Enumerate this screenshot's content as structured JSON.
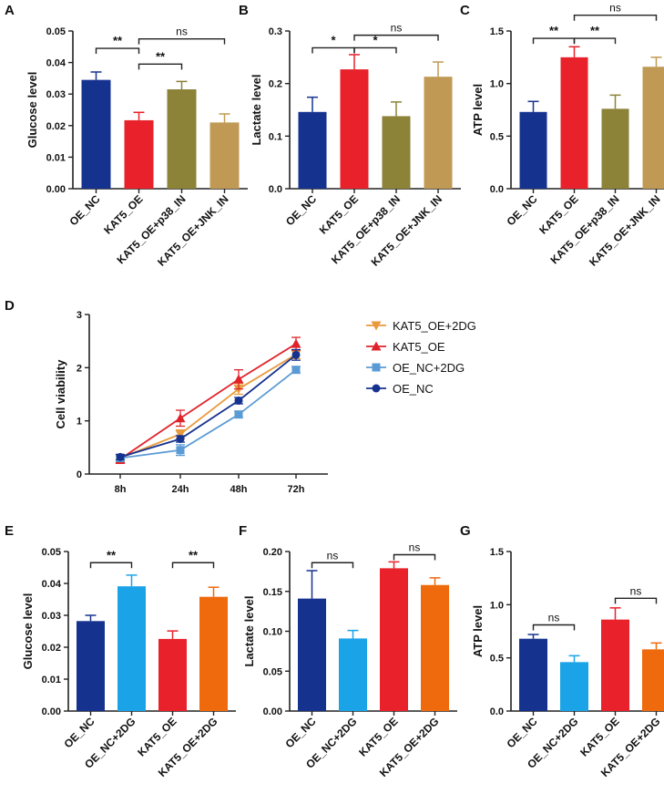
{
  "chart_data": [
    {
      "panel": "A",
      "type": "bar",
      "ylabel": "Glucose level",
      "ylim": [
        0,
        0.05
      ],
      "yticks": [
        "0.00",
        "0.01",
        "0.02",
        "0.03",
        "0.04",
        "0.05"
      ],
      "categories": [
        "OE_NC",
        "KAT5_OE",
        "KAT5_OE+p38_IN",
        "KAT5_OE+JNK_IN"
      ],
      "values": [
        0.0345,
        0.0217,
        0.0315,
        0.021
      ],
      "errors": [
        0.0025,
        0.0025,
        0.0025,
        0.0027
      ],
      "colors": [
        "#16328f",
        "#e8212a",
        "#8c8238",
        "#c09a55"
      ],
      "significance": [
        {
          "from": 0,
          "to": 1,
          "label": "**",
          "level": 0.0445
        },
        {
          "from": 1,
          "to": 2,
          "label": "**",
          "level": 0.0395
        },
        {
          "from": 1,
          "to": 3,
          "label": "ns",
          "level": 0.0475
        }
      ]
    },
    {
      "panel": "B",
      "type": "bar",
      "ylabel": "Lactate level",
      "ylim": [
        0,
        0.3
      ],
      "yticks": [
        "0.0",
        "0.1",
        "0.2",
        "0.3"
      ],
      "categories": [
        "OE_NC",
        "KAT5_OE",
        "KAT5_OE+p38_IN",
        "KAT5_OE+JNK_IN"
      ],
      "values": [
        0.146,
        0.227,
        0.138,
        0.213
      ],
      "errors": [
        0.028,
        0.028,
        0.027,
        0.028
      ],
      "colors": [
        "#16328f",
        "#e8212a",
        "#8c8238",
        "#c09a55"
      ],
      "significance": [
        {
          "from": 0,
          "to": 1,
          "label": "*",
          "level": 0.268
        },
        {
          "from": 1,
          "to": 2,
          "label": "*",
          "level": 0.268
        },
        {
          "from": 1,
          "to": 3,
          "label": "ns",
          "level": 0.292
        }
      ]
    },
    {
      "panel": "C",
      "type": "bar",
      "ylabel": "ATP level",
      "ylim": [
        0,
        1.5
      ],
      "yticks": [
        "0.0",
        "0.5",
        "1.0",
        "1.5"
      ],
      "categories": [
        "OE_NC",
        "KAT5_OE",
        "KAT5_OE+p38_IN",
        "KAT5_OE+JNK_IN"
      ],
      "values": [
        0.73,
        1.25,
        0.76,
        1.16
      ],
      "errors": [
        0.1,
        0.1,
        0.13,
        0.09
      ],
      "colors": [
        "#16328f",
        "#e8212a",
        "#8c8238",
        "#c09a55"
      ],
      "significance": [
        {
          "from": 0,
          "to": 1,
          "label": "**",
          "level": 1.43
        },
        {
          "from": 1,
          "to": 2,
          "label": "**",
          "level": 1.43
        },
        {
          "from": 1,
          "to": 3,
          "label": "ns",
          "level": 1.65
        }
      ]
    },
    {
      "panel": "D",
      "type": "line",
      "ylabel": "Cell viability",
      "ylim": [
        0,
        3
      ],
      "yticks": [
        "0",
        "1",
        "2",
        "3"
      ],
      "x": [
        "8h",
        "24h",
        "48h",
        "72h"
      ],
      "series": [
        {
          "name": "KAT5_OE+2DG",
          "color": "#e89a3c",
          "marker": "triangle-down",
          "values": [
            0.3,
            0.75,
            1.6,
            2.25
          ],
          "errors": [
            0.06,
            0.08,
            0.1,
            0.08
          ]
        },
        {
          "name": "KAT5_OE",
          "color": "#e0232b",
          "marker": "triangle-up",
          "values": [
            0.28,
            1.05,
            1.78,
            2.45
          ],
          "errors": [
            0.08,
            0.15,
            0.18,
            0.12
          ]
        },
        {
          "name": "OE_NC+2DG",
          "color": "#5b9bd5",
          "marker": "square",
          "values": [
            0.3,
            0.45,
            1.12,
            1.96
          ],
          "errors": [
            0.05,
            0.1,
            0.06,
            0.06
          ]
        },
        {
          "name": "OE_NC",
          "color": "#16328f",
          "marker": "circle",
          "values": [
            0.32,
            0.66,
            1.38,
            2.24
          ],
          "errors": [
            0.05,
            0.06,
            0.06,
            0.1
          ]
        }
      ]
    },
    {
      "panel": "E",
      "type": "bar",
      "ylabel": "Glucose level",
      "ylim": [
        0,
        0.05
      ],
      "yticks": [
        "0.00",
        "0.01",
        "0.02",
        "0.03",
        "0.04",
        "0.05"
      ],
      "categories": [
        "OE_NC",
        "OE_NC+2DG",
        "KAT5_OE",
        "KAT5_OE+2DG"
      ],
      "values": [
        0.0282,
        0.0391,
        0.0226,
        0.0358
      ],
      "errors": [
        0.0018,
        0.0035,
        0.0025,
        0.003
      ],
      "colors": [
        "#16328f",
        "#1ba3e8",
        "#e8212a",
        "#ee6a0c"
      ],
      "significance": [
        {
          "from": 0,
          "to": 1,
          "label": "**",
          "level": 0.0465
        },
        {
          "from": 2,
          "to": 3,
          "label": "**",
          "level": 0.0465
        }
      ]
    },
    {
      "panel": "F",
      "type": "bar",
      "ylabel": "Lactate level",
      "ylim": [
        0,
        0.2
      ],
      "yticks": [
        "0.00",
        "0.05",
        "0.10",
        "0.15",
        "0.20"
      ],
      "categories": [
        "OE_NC",
        "OE_NC+2DG",
        "KAT5_OE",
        "KAT5_OE+2DG"
      ],
      "values": [
        0.141,
        0.091,
        0.179,
        0.158
      ],
      "errors": [
        0.035,
        0.01,
        0.008,
        0.009
      ],
      "colors": [
        "#16328f",
        "#1ba3e8",
        "#e8212a",
        "#ee6a0c"
      ],
      "significance": [
        {
          "from": 0,
          "to": 1,
          "label": "ns",
          "level": 0.186
        },
        {
          "from": 2,
          "to": 3,
          "label": "ns",
          "level": 0.196
        }
      ]
    },
    {
      "panel": "G",
      "type": "bar",
      "ylabel": "ATP level",
      "ylim": [
        0,
        1.5
      ],
      "yticks": [
        "0.0",
        "0.5",
        "1.0",
        "1.5"
      ],
      "categories": [
        "OE_NC",
        "OE_NC+2DG",
        "KAT5_OE",
        "KAT5_OE+2DG"
      ],
      "values": [
        0.68,
        0.46,
        0.86,
        0.58
      ],
      "errors": [
        0.04,
        0.06,
        0.11,
        0.06
      ],
      "colors": [
        "#16328f",
        "#1ba3e8",
        "#e8212a",
        "#ee6a0c"
      ],
      "significance": [
        {
          "from": 0,
          "to": 1,
          "label": "ns",
          "level": 0.81
        },
        {
          "from": 2,
          "to": 3,
          "label": "ns",
          "level": 1.06
        }
      ]
    }
  ]
}
